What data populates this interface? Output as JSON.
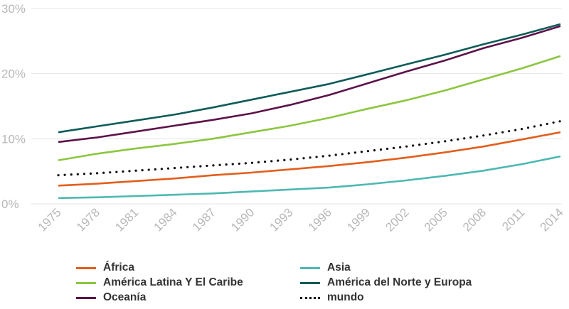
{
  "chart_data": {
    "type": "line",
    "title": "",
    "xlabel": "",
    "ylabel": "",
    "ylim": [
      0,
      30
    ],
    "yticks": [
      0,
      10,
      20,
      30
    ],
    "ytick_labels": [
      "0%",
      "10%",
      "20%",
      "30%"
    ],
    "xticks": [
      1975,
      1978,
      1981,
      1984,
      1987,
      1990,
      1993,
      1996,
      1999,
      2002,
      2005,
      2008,
      2011,
      2014
    ],
    "xtick_labels": [
      "1975",
      "1978",
      "1981",
      "1984",
      "1987",
      "1990",
      "1993",
      "1996",
      "1999",
      "2002",
      "2005",
      "2008",
      "2011",
      "2014"
    ],
    "x": [
      1975,
      1978,
      1981,
      1984,
      1987,
      1990,
      1993,
      1996,
      1999,
      2002,
      2005,
      2008,
      2011,
      2014
    ],
    "grid": "horizontal",
    "legend_position": "bottom",
    "series": [
      {
        "name": "África",
        "color": "#e35e1c",
        "style": "solid",
        "values": [
          2.8,
          3.1,
          3.5,
          3.9,
          4.4,
          4.8,
          5.3,
          5.8,
          6.4,
          7.1,
          7.9,
          8.8,
          9.9,
          11.0
        ]
      },
      {
        "name": "Asia",
        "color": "#4db8b2",
        "style": "solid",
        "values": [
          0.9,
          1.0,
          1.2,
          1.4,
          1.6,
          1.9,
          2.2,
          2.5,
          3.0,
          3.6,
          4.3,
          5.1,
          6.1,
          7.3
        ]
      },
      {
        "name": "América Latina Y El Caribe",
        "color": "#8cc63f",
        "style": "solid",
        "values": [
          6.7,
          7.7,
          8.5,
          9.2,
          10.0,
          11.0,
          12.0,
          13.2,
          14.6,
          15.9,
          17.4,
          19.1,
          20.8,
          22.7
        ]
      },
      {
        "name": "América del Norte y Europa",
        "color": "#0e5b57",
        "style": "solid",
        "values": [
          11.0,
          11.9,
          12.8,
          13.7,
          14.8,
          16.0,
          17.2,
          18.4,
          19.9,
          21.4,
          22.9,
          24.5,
          26.0,
          27.6
        ]
      },
      {
        "name": "Oceanía",
        "color": "#5c1249",
        "style": "solid",
        "values": [
          9.5,
          10.2,
          11.1,
          12.0,
          12.9,
          13.9,
          15.2,
          16.7,
          18.5,
          20.3,
          22.0,
          23.9,
          25.5,
          27.3
        ]
      },
      {
        "name": "mundo",
        "color": "#111111",
        "style": "dotted",
        "values": [
          4.4,
          4.7,
          5.1,
          5.5,
          5.9,
          6.3,
          6.8,
          7.4,
          8.1,
          8.8,
          9.6,
          10.5,
          11.5,
          12.7
        ]
      }
    ]
  }
}
